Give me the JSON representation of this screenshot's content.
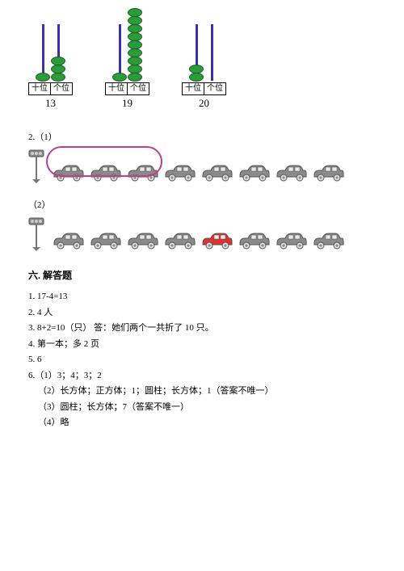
{
  "abaci": [
    {
      "tens": 1,
      "ones": 3,
      "tens_label": "十位",
      "ones_label": "个位",
      "number": "13"
    },
    {
      "tens": 1,
      "ones": 9,
      "tens_label": "十位",
      "ones_label": "个位",
      "number": "19"
    },
    {
      "tens": 2,
      "ones": 0,
      "tens_label": "十位",
      "ones_label": "个位",
      "number": "20"
    }
  ],
  "q2": {
    "label1": "2.（1）",
    "label2": "（2）",
    "cars1_count": 8,
    "cars2_count": 8,
    "circled_count": 3,
    "red_index": 4,
    "car_color_gray": "#8a8a8a",
    "car_color_red": "#e03030",
    "car_body": "#9a9a9a"
  },
  "section6": {
    "title": "六. 解答题",
    "lines": [
      "1. 17-4=13",
      "2. 4 人",
      "3. 8+2=10（只）  答：她们两个一共折了 10 只。",
      "4. 第一本；多 2 页",
      "5. 6",
      "6.（1）3；4；3；2",
      "（2）长方体；正方体；1；圆柱；长方体；1（答案不唯一）",
      "（3）圆柱；长方体；7（答案不唯一）",
      "（4）略"
    ]
  },
  "colors": {
    "rod": "#3e2db5",
    "bead": "#2a9d3a",
    "circle": "#c04080"
  }
}
